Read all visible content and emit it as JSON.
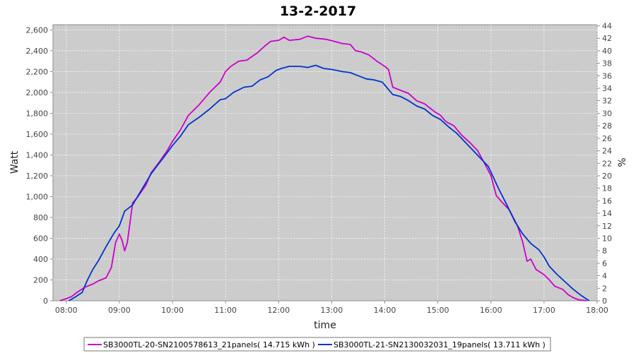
{
  "chart_data": {
    "type": "line",
    "title": "13-2-2017",
    "xlabel": "time",
    "ylabel": "Watt",
    "y2label": "%",
    "xlim": [
      7.75,
      18.0
    ],
    "ylim": [
      0,
      2650
    ],
    "y2lim": [
      0,
      44.17
    ],
    "x_ticks": [
      {
        "v": 8,
        "label": "08:00"
      },
      {
        "v": 9,
        "label": "09:00"
      },
      {
        "v": 10,
        "label": "10:00"
      },
      {
        "v": 11,
        "label": "11:00"
      },
      {
        "v": 12,
        "label": "12:00"
      },
      {
        "v": 13,
        "label": "13:00"
      },
      {
        "v": 14,
        "label": "14:00"
      },
      {
        "v": 15,
        "label": "15:00"
      },
      {
        "v": 16,
        "label": "16:00"
      },
      {
        "v": 17,
        "label": "17:00"
      },
      {
        "v": 18,
        "label": "18:00"
      }
    ],
    "y_ticks": [
      {
        "v": 0,
        "label": "0"
      },
      {
        "v": 200,
        "label": "200"
      },
      {
        "v": 400,
        "label": "400"
      },
      {
        "v": 600,
        "label": "600"
      },
      {
        "v": 800,
        "label": "800"
      },
      {
        "v": 1000,
        "label": "1,000"
      },
      {
        "v": 1200,
        "label": "1,200"
      },
      {
        "v": 1400,
        "label": "1,400"
      },
      {
        "v": 1600,
        "label": "1,600"
      },
      {
        "v": 1800,
        "label": "1,800"
      },
      {
        "v": 2000,
        "label": "2,000"
      },
      {
        "v": 2200,
        "label": "2,200"
      },
      {
        "v": 2400,
        "label": "2,400"
      },
      {
        "v": 2600,
        "label": "2,600"
      }
    ],
    "y2_ticks": [
      {
        "v": 0,
        "label": "0"
      },
      {
        "v": 2,
        "label": "2"
      },
      {
        "v": 4,
        "label": "4"
      },
      {
        "v": 6,
        "label": "6"
      },
      {
        "v": 8,
        "label": "8"
      },
      {
        "v": 10,
        "label": "10"
      },
      {
        "v": 12,
        "label": "12"
      },
      {
        "v": 14,
        "label": "14"
      },
      {
        "v": 16,
        "label": "16"
      },
      {
        "v": 18,
        "label": "18"
      },
      {
        "v": 20,
        "label": "20"
      },
      {
        "v": 22,
        "label": "22"
      },
      {
        "v": 24,
        "label": "24"
      },
      {
        "v": 26,
        "label": "26"
      },
      {
        "v": 28,
        "label": "28"
      },
      {
        "v": 30,
        "label": "30"
      },
      {
        "v": 32,
        "label": "32"
      },
      {
        "v": 34,
        "label": "34"
      },
      {
        "v": 36,
        "label": "36"
      },
      {
        "v": 38,
        "label": "38"
      },
      {
        "v": 40,
        "label": "40"
      },
      {
        "v": 42,
        "label": "42"
      },
      {
        "v": 44,
        "label": "44"
      }
    ],
    "grid": true,
    "background": "#cccccc",
    "legend_position": "bottom",
    "series": [
      {
        "name": "SB3000TL-20-SN2100578613_21panels( 14.715 kWh )",
        "color": "#cc00cc",
        "points": [
          [
            7.88,
            0
          ],
          [
            8.0,
            20
          ],
          [
            8.1,
            40
          ],
          [
            8.2,
            80
          ],
          [
            8.35,
            130
          ],
          [
            8.5,
            160
          ],
          [
            8.6,
            190
          ],
          [
            8.75,
            220
          ],
          [
            8.85,
            320
          ],
          [
            8.93,
            560
          ],
          [
            9.0,
            640
          ],
          [
            9.05,
            580
          ],
          [
            9.1,
            480
          ],
          [
            9.15,
            560
          ],
          [
            9.25,
            940
          ],
          [
            9.35,
            1000
          ],
          [
            9.5,
            1110
          ],
          [
            9.6,
            1230
          ],
          [
            9.75,
            1330
          ],
          [
            9.9,
            1440
          ],
          [
            10.0,
            1530
          ],
          [
            10.15,
            1640
          ],
          [
            10.3,
            1780
          ],
          [
            10.5,
            1880
          ],
          [
            10.7,
            2000
          ],
          [
            10.9,
            2100
          ],
          [
            11.0,
            2200
          ],
          [
            11.1,
            2250
          ],
          [
            11.25,
            2300
          ],
          [
            11.4,
            2310
          ],
          [
            11.6,
            2380
          ],
          [
            11.75,
            2450
          ],
          [
            11.85,
            2490
          ],
          [
            12.0,
            2500
          ],
          [
            12.1,
            2530
          ],
          [
            12.2,
            2500
          ],
          [
            12.4,
            2510
          ],
          [
            12.55,
            2540
          ],
          [
            12.7,
            2520
          ],
          [
            12.9,
            2510
          ],
          [
            13.05,
            2490
          ],
          [
            13.2,
            2470
          ],
          [
            13.35,
            2460
          ],
          [
            13.45,
            2400
          ],
          [
            13.55,
            2390
          ],
          [
            13.7,
            2360
          ],
          [
            13.85,
            2300
          ],
          [
            14.0,
            2250
          ],
          [
            14.07,
            2220
          ],
          [
            14.15,
            2050
          ],
          [
            14.3,
            2020
          ],
          [
            14.45,
            1990
          ],
          [
            14.6,
            1920
          ],
          [
            14.75,
            1890
          ],
          [
            14.85,
            1850
          ],
          [
            14.95,
            1810
          ],
          [
            15.05,
            1780
          ],
          [
            15.15,
            1720
          ],
          [
            15.3,
            1680
          ],
          [
            15.45,
            1590
          ],
          [
            15.6,
            1520
          ],
          [
            15.75,
            1440
          ],
          [
            15.9,
            1300
          ],
          [
            16.0,
            1200
          ],
          [
            16.1,
            1010
          ],
          [
            16.2,
            950
          ],
          [
            16.35,
            870
          ],
          [
            16.5,
            720
          ],
          [
            16.6,
            560
          ],
          [
            16.68,
            380
          ],
          [
            16.75,
            400
          ],
          [
            16.85,
            300
          ],
          [
            17.0,
            250
          ],
          [
            17.1,
            200
          ],
          [
            17.2,
            140
          ],
          [
            17.35,
            110
          ],
          [
            17.45,
            60
          ],
          [
            17.55,
            30
          ],
          [
            17.65,
            10
          ],
          [
            17.8,
            0
          ]
        ]
      },
      {
        "name": "SB3000TL-21-SN2130032031_19panels( 13.711 kWh )",
        "color": "#0033cc",
        "points": [
          [
            8.05,
            0
          ],
          [
            8.15,
            30
          ],
          [
            8.3,
            80
          ],
          [
            8.4,
            200
          ],
          [
            8.5,
            300
          ],
          [
            8.6,
            380
          ],
          [
            8.75,
            520
          ],
          [
            8.9,
            650
          ],
          [
            9.0,
            720
          ],
          [
            9.1,
            860
          ],
          [
            9.25,
            920
          ],
          [
            9.4,
            1050
          ],
          [
            9.6,
            1220
          ],
          [
            9.75,
            1320
          ],
          [
            9.9,
            1420
          ],
          [
            10.0,
            1490
          ],
          [
            10.15,
            1580
          ],
          [
            10.3,
            1690
          ],
          [
            10.5,
            1760
          ],
          [
            10.7,
            1840
          ],
          [
            10.9,
            1930
          ],
          [
            11.0,
            1940
          ],
          [
            11.15,
            2000
          ],
          [
            11.35,
            2050
          ],
          [
            11.5,
            2060
          ],
          [
            11.65,
            2120
          ],
          [
            11.8,
            2150
          ],
          [
            11.95,
            2210
          ],
          [
            12.05,
            2230
          ],
          [
            12.2,
            2250
          ],
          [
            12.4,
            2250
          ],
          [
            12.55,
            2240
          ],
          [
            12.7,
            2260
          ],
          [
            12.85,
            2230
          ],
          [
            13.0,
            2220
          ],
          [
            13.2,
            2200
          ],
          [
            13.35,
            2190
          ],
          [
            13.5,
            2160
          ],
          [
            13.65,
            2130
          ],
          [
            13.8,
            2120
          ],
          [
            13.95,
            2100
          ],
          [
            14.05,
            2040
          ],
          [
            14.15,
            1980
          ],
          [
            14.3,
            1960
          ],
          [
            14.45,
            1920
          ],
          [
            14.6,
            1870
          ],
          [
            14.75,
            1840
          ],
          [
            14.9,
            1780
          ],
          [
            15.05,
            1740
          ],
          [
            15.2,
            1670
          ],
          [
            15.35,
            1610
          ],
          [
            15.5,
            1530
          ],
          [
            15.65,
            1450
          ],
          [
            15.8,
            1370
          ],
          [
            15.95,
            1290
          ],
          [
            16.05,
            1180
          ],
          [
            16.15,
            1070
          ],
          [
            16.3,
            920
          ],
          [
            16.45,
            760
          ],
          [
            16.6,
            640
          ],
          [
            16.75,
            550
          ],
          [
            16.9,
            490
          ],
          [
            17.0,
            420
          ],
          [
            17.1,
            330
          ],
          [
            17.25,
            250
          ],
          [
            17.4,
            180
          ],
          [
            17.55,
            110
          ],
          [
            17.7,
            50
          ],
          [
            17.85,
            0
          ]
        ]
      }
    ]
  }
}
